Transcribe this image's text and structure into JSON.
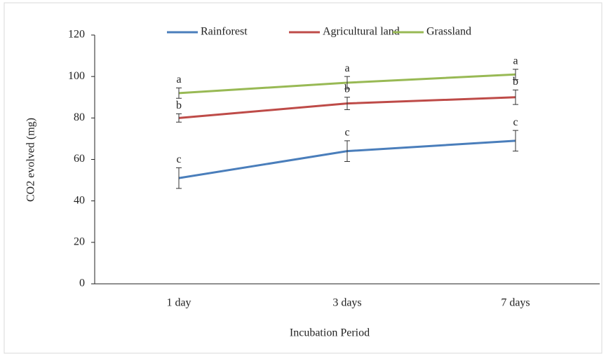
{
  "chart_data": {
    "type": "line",
    "xlabel": "Incubation Period",
    "ylabel": "CO2 evolved (mg)",
    "categories": [
      "1 day",
      "3 days",
      "7 days"
    ],
    "ylim": [
      0,
      120
    ],
    "yticks": [
      0,
      20,
      40,
      60,
      80,
      100,
      120
    ],
    "grid": false,
    "legend": "top",
    "series": [
      {
        "name": "Rainforest",
        "color": "#4a7ebb",
        "values": [
          51,
          64,
          69
        ],
        "errors": [
          5,
          5,
          5
        ],
        "labels": [
          "c",
          "c",
          "c"
        ]
      },
      {
        "name": "Agricultural land",
        "color": "#be4b48",
        "values": [
          80,
          87,
          90
        ],
        "errors": [
          2,
          3,
          3.5
        ],
        "labels": [
          "b",
          "b",
          "b"
        ]
      },
      {
        "name": "Grassland",
        "color": "#98b954",
        "values": [
          92,
          97,
          101
        ],
        "errors": [
          2.5,
          3,
          2.5
        ],
        "labels": [
          "a",
          "a",
          "a"
        ]
      }
    ]
  }
}
